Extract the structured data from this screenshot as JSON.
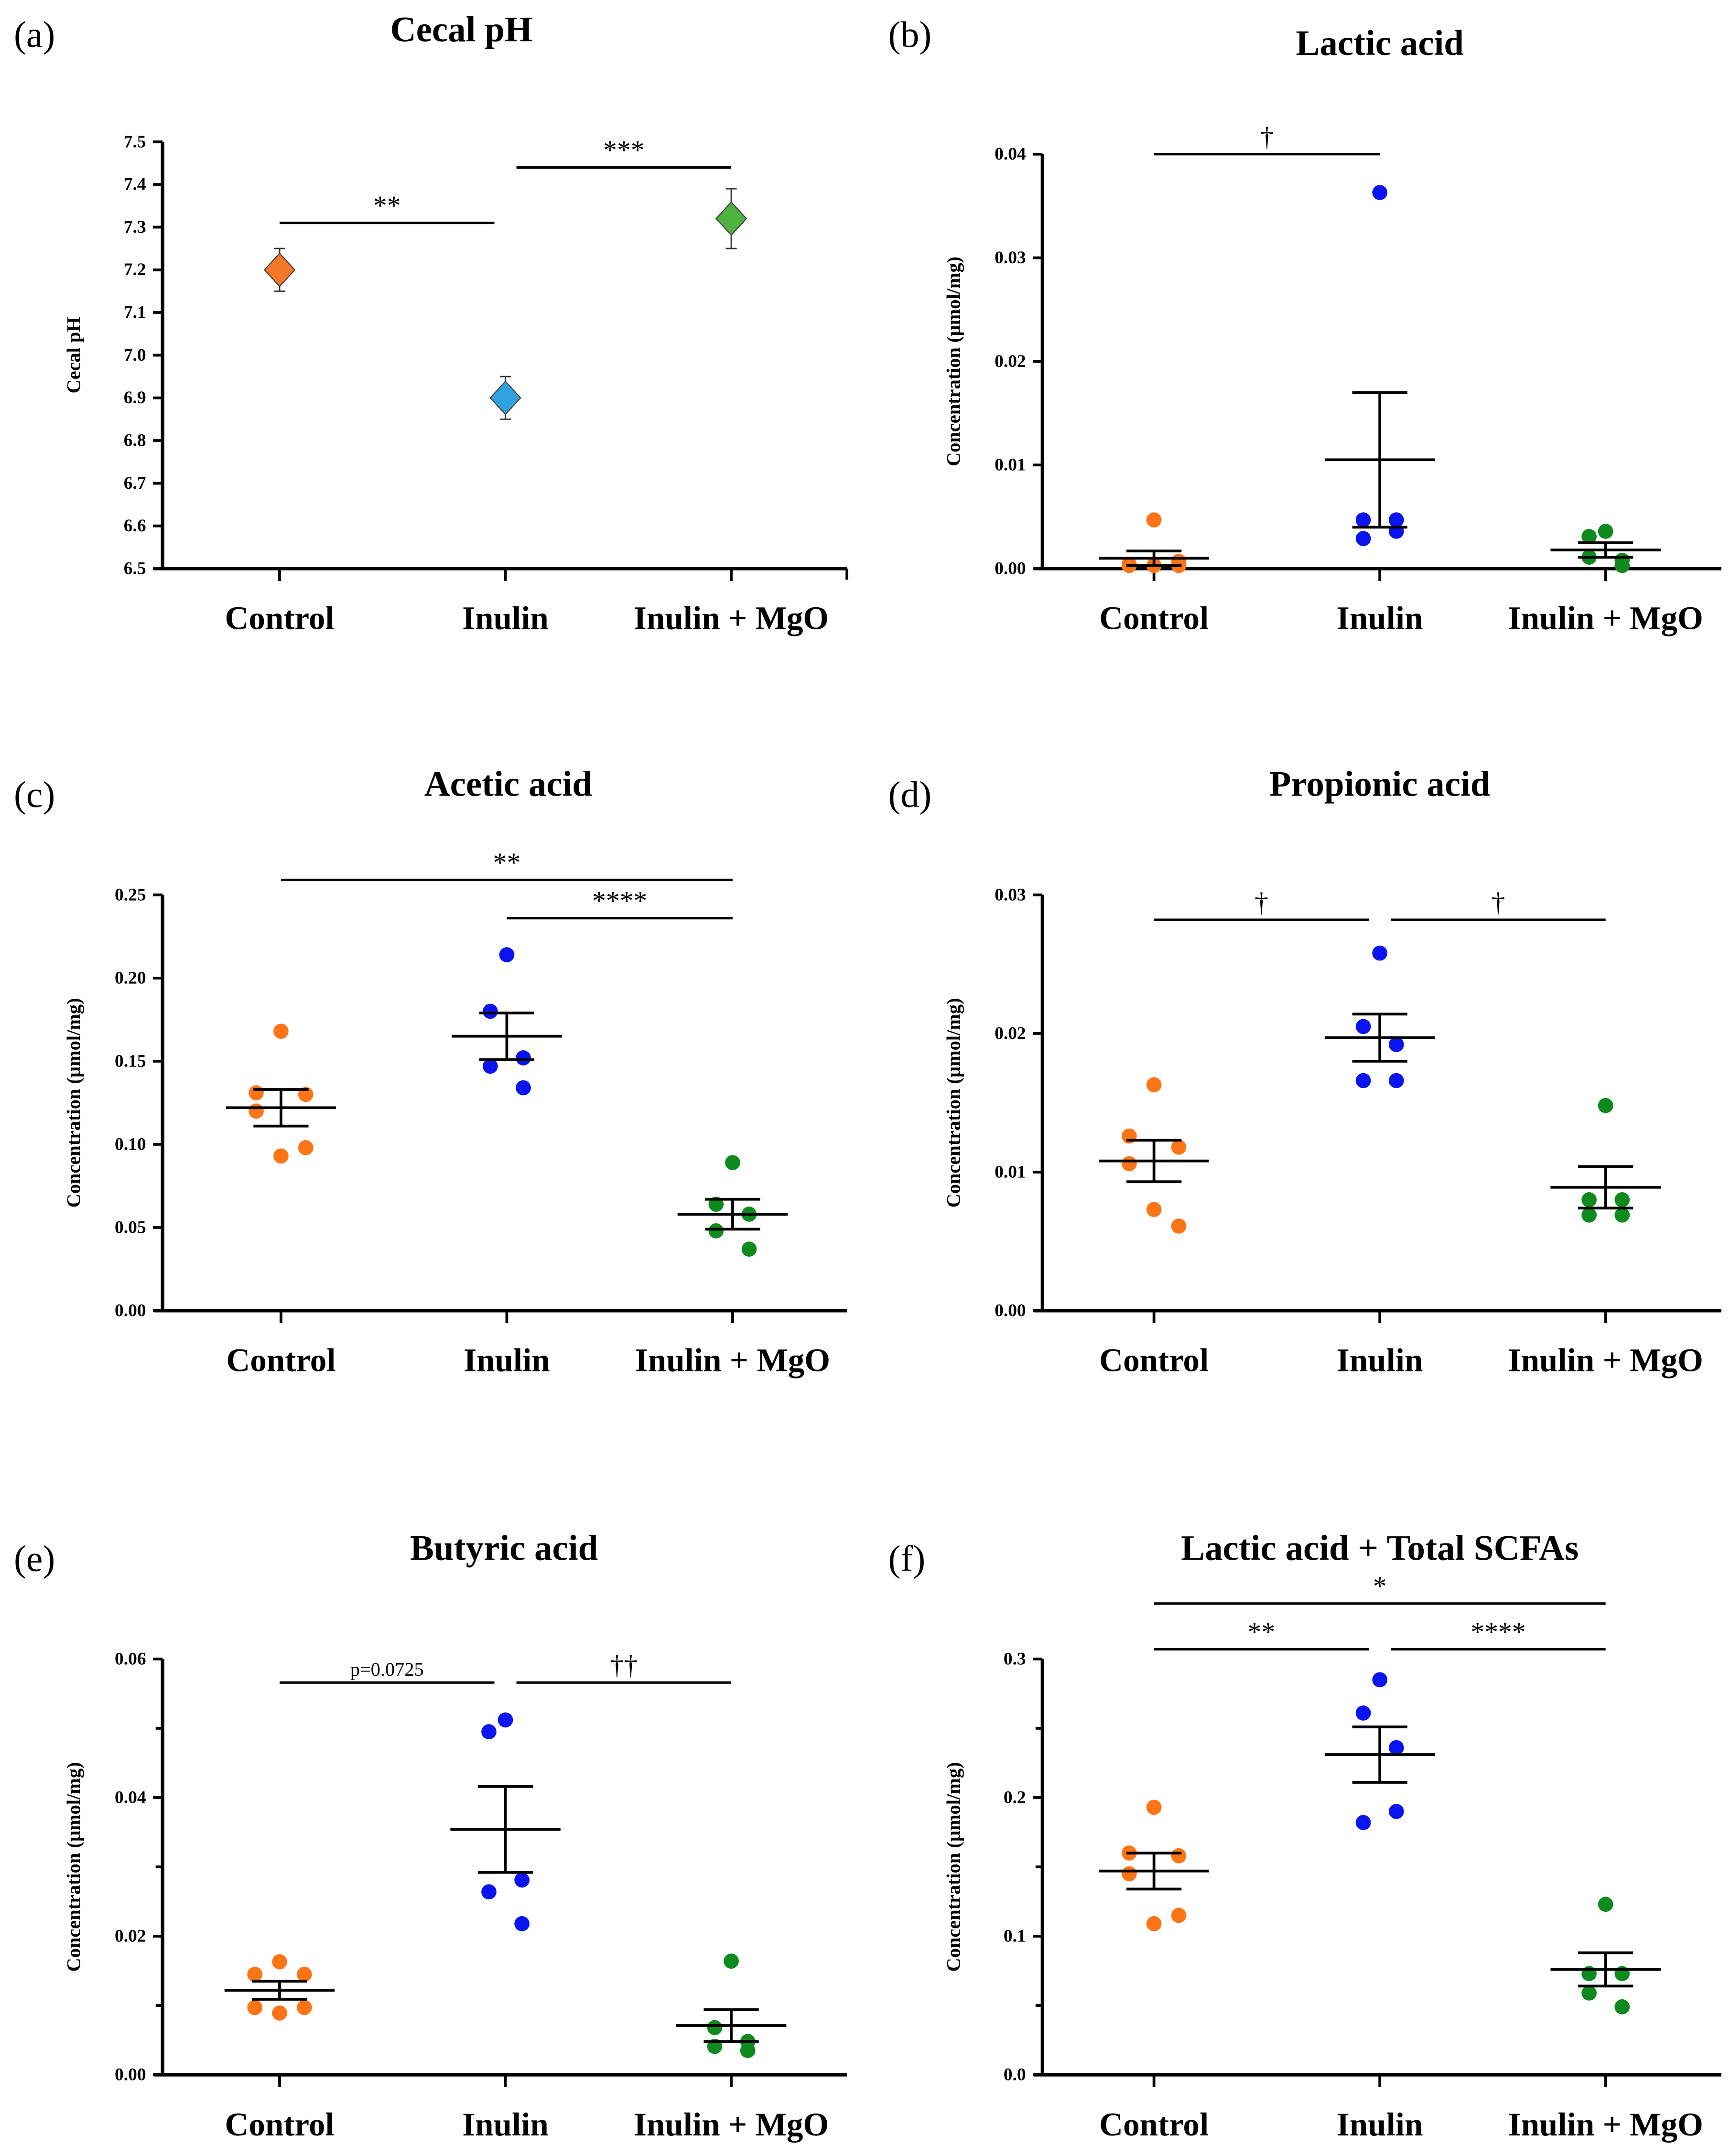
{
  "groups": [
    "Control",
    "Inulin",
    "Inulin + MgO"
  ],
  "colors": {
    "Control": "#ff7415",
    "Inulin": "#0a14f0",
    "MgO": "#0e8a1e",
    "a_control": "#f5782a",
    "a_inulin": "#2fa3e0",
    "a_mgo": "#4db240"
  },
  "chart_data": [
    {
      "id": "a",
      "panel": "(a)",
      "type": "scatter",
      "title": "Cecal pH",
      "ylabel": "Cecal pH",
      "ylim": [
        6.5,
        7.5
      ],
      "yticks": [
        "6.5",
        "6.6",
        "6.7",
        "6.8",
        "6.9",
        "7.0",
        "7.1",
        "7.2",
        "7.3",
        "7.4",
        "7.5"
      ],
      "minor": false,
      "marker": "diamond",
      "series": [
        {
          "name": "Control",
          "mean": 7.2,
          "sem": 0.05
        },
        {
          "name": "Inulin",
          "mean": 6.9,
          "sem": 0.05
        },
        {
          "name": "Inulin + MgO",
          "mean": 7.32,
          "sem": 0.07
        }
      ],
      "brackets": [
        {
          "from": 0,
          "to": 1,
          "y": 7.31,
          "label": "**"
        },
        {
          "from": 1,
          "to": 2,
          "y": 7.44,
          "label": "***"
        }
      ]
    },
    {
      "id": "b",
      "panel": "(b)",
      "type": "scatter",
      "title": "Lactic acid",
      "ylabel": "Concentration (µmol/mg)",
      "ylim": [
        0,
        0.04
      ],
      "yticks": [
        "0.00",
        "0.01",
        "0.02",
        "0.03",
        "0.04"
      ],
      "minor": false,
      "marker": "dot",
      "series": [
        {
          "name": "Control",
          "values": [
            0.0047,
            0.0003,
            0.0007,
            0.0004,
            0.0003,
            0.0003
          ],
          "mean": 0.001,
          "sem": 0.0007
        },
        {
          "name": "Inulin",
          "values": [
            0.0363,
            0.0047,
            0.0047,
            0.0029,
            0.0036
          ],
          "mean": 0.0105,
          "sem": 0.0065
        },
        {
          "name": "Inulin + MgO",
          "values": [
            0.0036,
            0.0031,
            0.0003,
            0.0011,
            0.0008
          ],
          "mean": 0.0018,
          "sem": 0.0007
        }
      ],
      "brackets": [
        {
          "from": 0,
          "to": 1,
          "y": 0.04,
          "label": "†"
        }
      ]
    },
    {
      "id": "c",
      "panel": "(c)",
      "type": "scatter",
      "title": "Acetic acid",
      "ylabel": "Concentration (µmol/mg)",
      "ylim": [
        0,
        0.25
      ],
      "yticks": [
        "0.00",
        "0.05",
        "0.10",
        "0.15",
        "0.20",
        "0.25"
      ],
      "minor": false,
      "marker": "dot",
      "series": [
        {
          "name": "Control",
          "values": [
            0.168,
            0.131,
            0.13,
            0.12,
            0.093,
            0.098
          ],
          "mean": 0.122,
          "sem": 0.011
        },
        {
          "name": "Inulin",
          "values": [
            0.214,
            0.18,
            0.152,
            0.147,
            0.134
          ],
          "mean": 0.165,
          "sem": 0.014
        },
        {
          "name": "Inulin + MgO",
          "values": [
            0.089,
            0.064,
            0.058,
            0.048,
            0.037
          ],
          "mean": 0.058,
          "sem": 0.009
        }
      ],
      "brackets": [
        {
          "from": 0,
          "to": 2,
          "y": 0.259,
          "label": "**"
        },
        {
          "from": 1,
          "to": 2,
          "y": 0.236,
          "label": "****"
        }
      ]
    },
    {
      "id": "d",
      "panel": "(d)",
      "type": "scatter",
      "title": "Propionic acid",
      "ylabel": "Concentration (µmol/mg)",
      "ylim": [
        0,
        0.03
      ],
      "yticks": [
        "0.00",
        "0.01",
        "0.02",
        "0.03"
      ],
      "minor": false,
      "marker": "dot",
      "series": [
        {
          "name": "Control",
          "values": [
            0.0163,
            0.0126,
            0.0118,
            0.0106,
            0.0073,
            0.0061
          ],
          "mean": 0.0108,
          "sem": 0.0015
        },
        {
          "name": "Inulin",
          "values": [
            0.0258,
            0.0205,
            0.0192,
            0.0166,
            0.0166
          ],
          "mean": 0.0197,
          "sem": 0.0017
        },
        {
          "name": "Inulin + MgO",
          "values": [
            0.0148,
            0.008,
            0.0069,
            0.0069,
            0.008
          ],
          "mean": 0.0089,
          "sem": 0.0015
        }
      ],
      "brackets": [
        {
          "from": 0,
          "to": 1,
          "y": 0.0282,
          "label": "†"
        },
        {
          "from": 1,
          "to": 2,
          "y": 0.0282,
          "label": "†"
        }
      ]
    },
    {
      "id": "e",
      "panel": "(e)",
      "type": "scatter",
      "title": "Butyric acid",
      "ylabel": "Concentration (µmol/mg)",
      "ylim": [
        0,
        0.06
      ],
      "yticks": [
        "0.00",
        "0.02",
        "0.04",
        "0.06"
      ],
      "minor": true,
      "marker": "dot",
      "series": [
        {
          "name": "Control",
          "values": [
            0.0163,
            0.0145,
            0.0145,
            0.0097,
            0.0089,
            0.0097
          ],
          "mean": 0.0122,
          "sem": 0.0013
        },
        {
          "name": "Inulin",
          "values": [
            0.0512,
            0.0495,
            0.0281,
            0.0264,
            0.0218
          ],
          "mean": 0.0354,
          "sem": 0.0062
        },
        {
          "name": "Inulin + MgO",
          "values": [
            0.0164,
            0.0068,
            0.0048,
            0.0041,
            0.0035
          ],
          "mean": 0.0071,
          "sem": 0.0023
        }
      ],
      "brackets": [
        {
          "from": 0,
          "to": 1,
          "y": 0.0566,
          "label": "p=0.0725",
          "small": true
        },
        {
          "from": 1,
          "to": 2,
          "y": 0.0566,
          "label": "††"
        }
      ]
    },
    {
      "id": "f",
      "panel": "(f)",
      "type": "scatter",
      "title": "Lactic acid + Total SCFAs",
      "ylabel": "Concentration (µmol/mg)",
      "ylim": [
        0,
        0.3
      ],
      "yticks": [
        "0.0",
        "0.1",
        "0.2",
        "0.3"
      ],
      "minor": true,
      "marker": "dot",
      "series": [
        {
          "name": "Control",
          "values": [
            0.193,
            0.16,
            0.158,
            0.145,
            0.109,
            0.115
          ],
          "mean": 0.147,
          "sem": 0.013
        },
        {
          "name": "Inulin",
          "values": [
            0.285,
            0.261,
            0.236,
            0.182,
            0.19
          ],
          "mean": 0.231,
          "sem": 0.02
        },
        {
          "name": "Inulin + MgO",
          "values": [
            0.123,
            0.073,
            0.073,
            0.059,
            0.049
          ],
          "mean": 0.076,
          "sem": 0.012
        }
      ],
      "brackets": [
        {
          "from": 0,
          "to": 2,
          "y": 0.34,
          "label": "*"
        },
        {
          "from": 0,
          "to": 1,
          "y": 0.307,
          "label": "**"
        },
        {
          "from": 1,
          "to": 2,
          "y": 0.307,
          "label": "****"
        }
      ]
    }
  ]
}
